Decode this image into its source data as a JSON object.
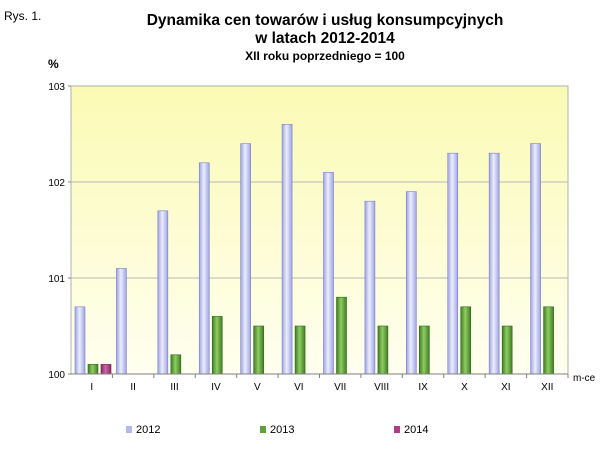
{
  "figure_label": "Rys. 1.",
  "chart_data": {
    "type": "bar",
    "title_line1": "Dynamika cen towarów i usług konsumpcyjnych",
    "title_line2": "w latach 2012-2014",
    "subtitle": "XII roku poprzedniego = 100",
    "ylabel": "%",
    "xlabel": "m-ce",
    "ylim": [
      100,
      103
    ],
    "yticks": [
      "100",
      "101",
      "102",
      "103"
    ],
    "categories": [
      "I",
      "II",
      "III",
      "IV",
      "V",
      "VI",
      "VII",
      "VIII",
      "IX",
      "X",
      "XI",
      "XII"
    ],
    "series": [
      {
        "name": "2012",
        "color": "#b4b8ec",
        "values": [
          100.7,
          101.1,
          101.7,
          102.2,
          102.4,
          102.6,
          102.1,
          101.8,
          101.9,
          102.3,
          102.3,
          102.4
        ]
      },
      {
        "name": "2013",
        "color": "#5fa03c",
        "values": [
          100.1,
          null,
          100.2,
          100.6,
          100.5,
          100.5,
          100.8,
          100.5,
          100.5,
          100.7,
          100.5,
          100.7
        ]
      },
      {
        "name": "2014",
        "color": "#b03c84",
        "values": [
          100.1,
          null,
          null,
          null,
          null,
          null,
          null,
          null,
          null,
          null,
          null,
          null
        ]
      }
    ],
    "grid": true,
    "legend_position": "bottom",
    "plot_background": "#fdfccf"
  }
}
